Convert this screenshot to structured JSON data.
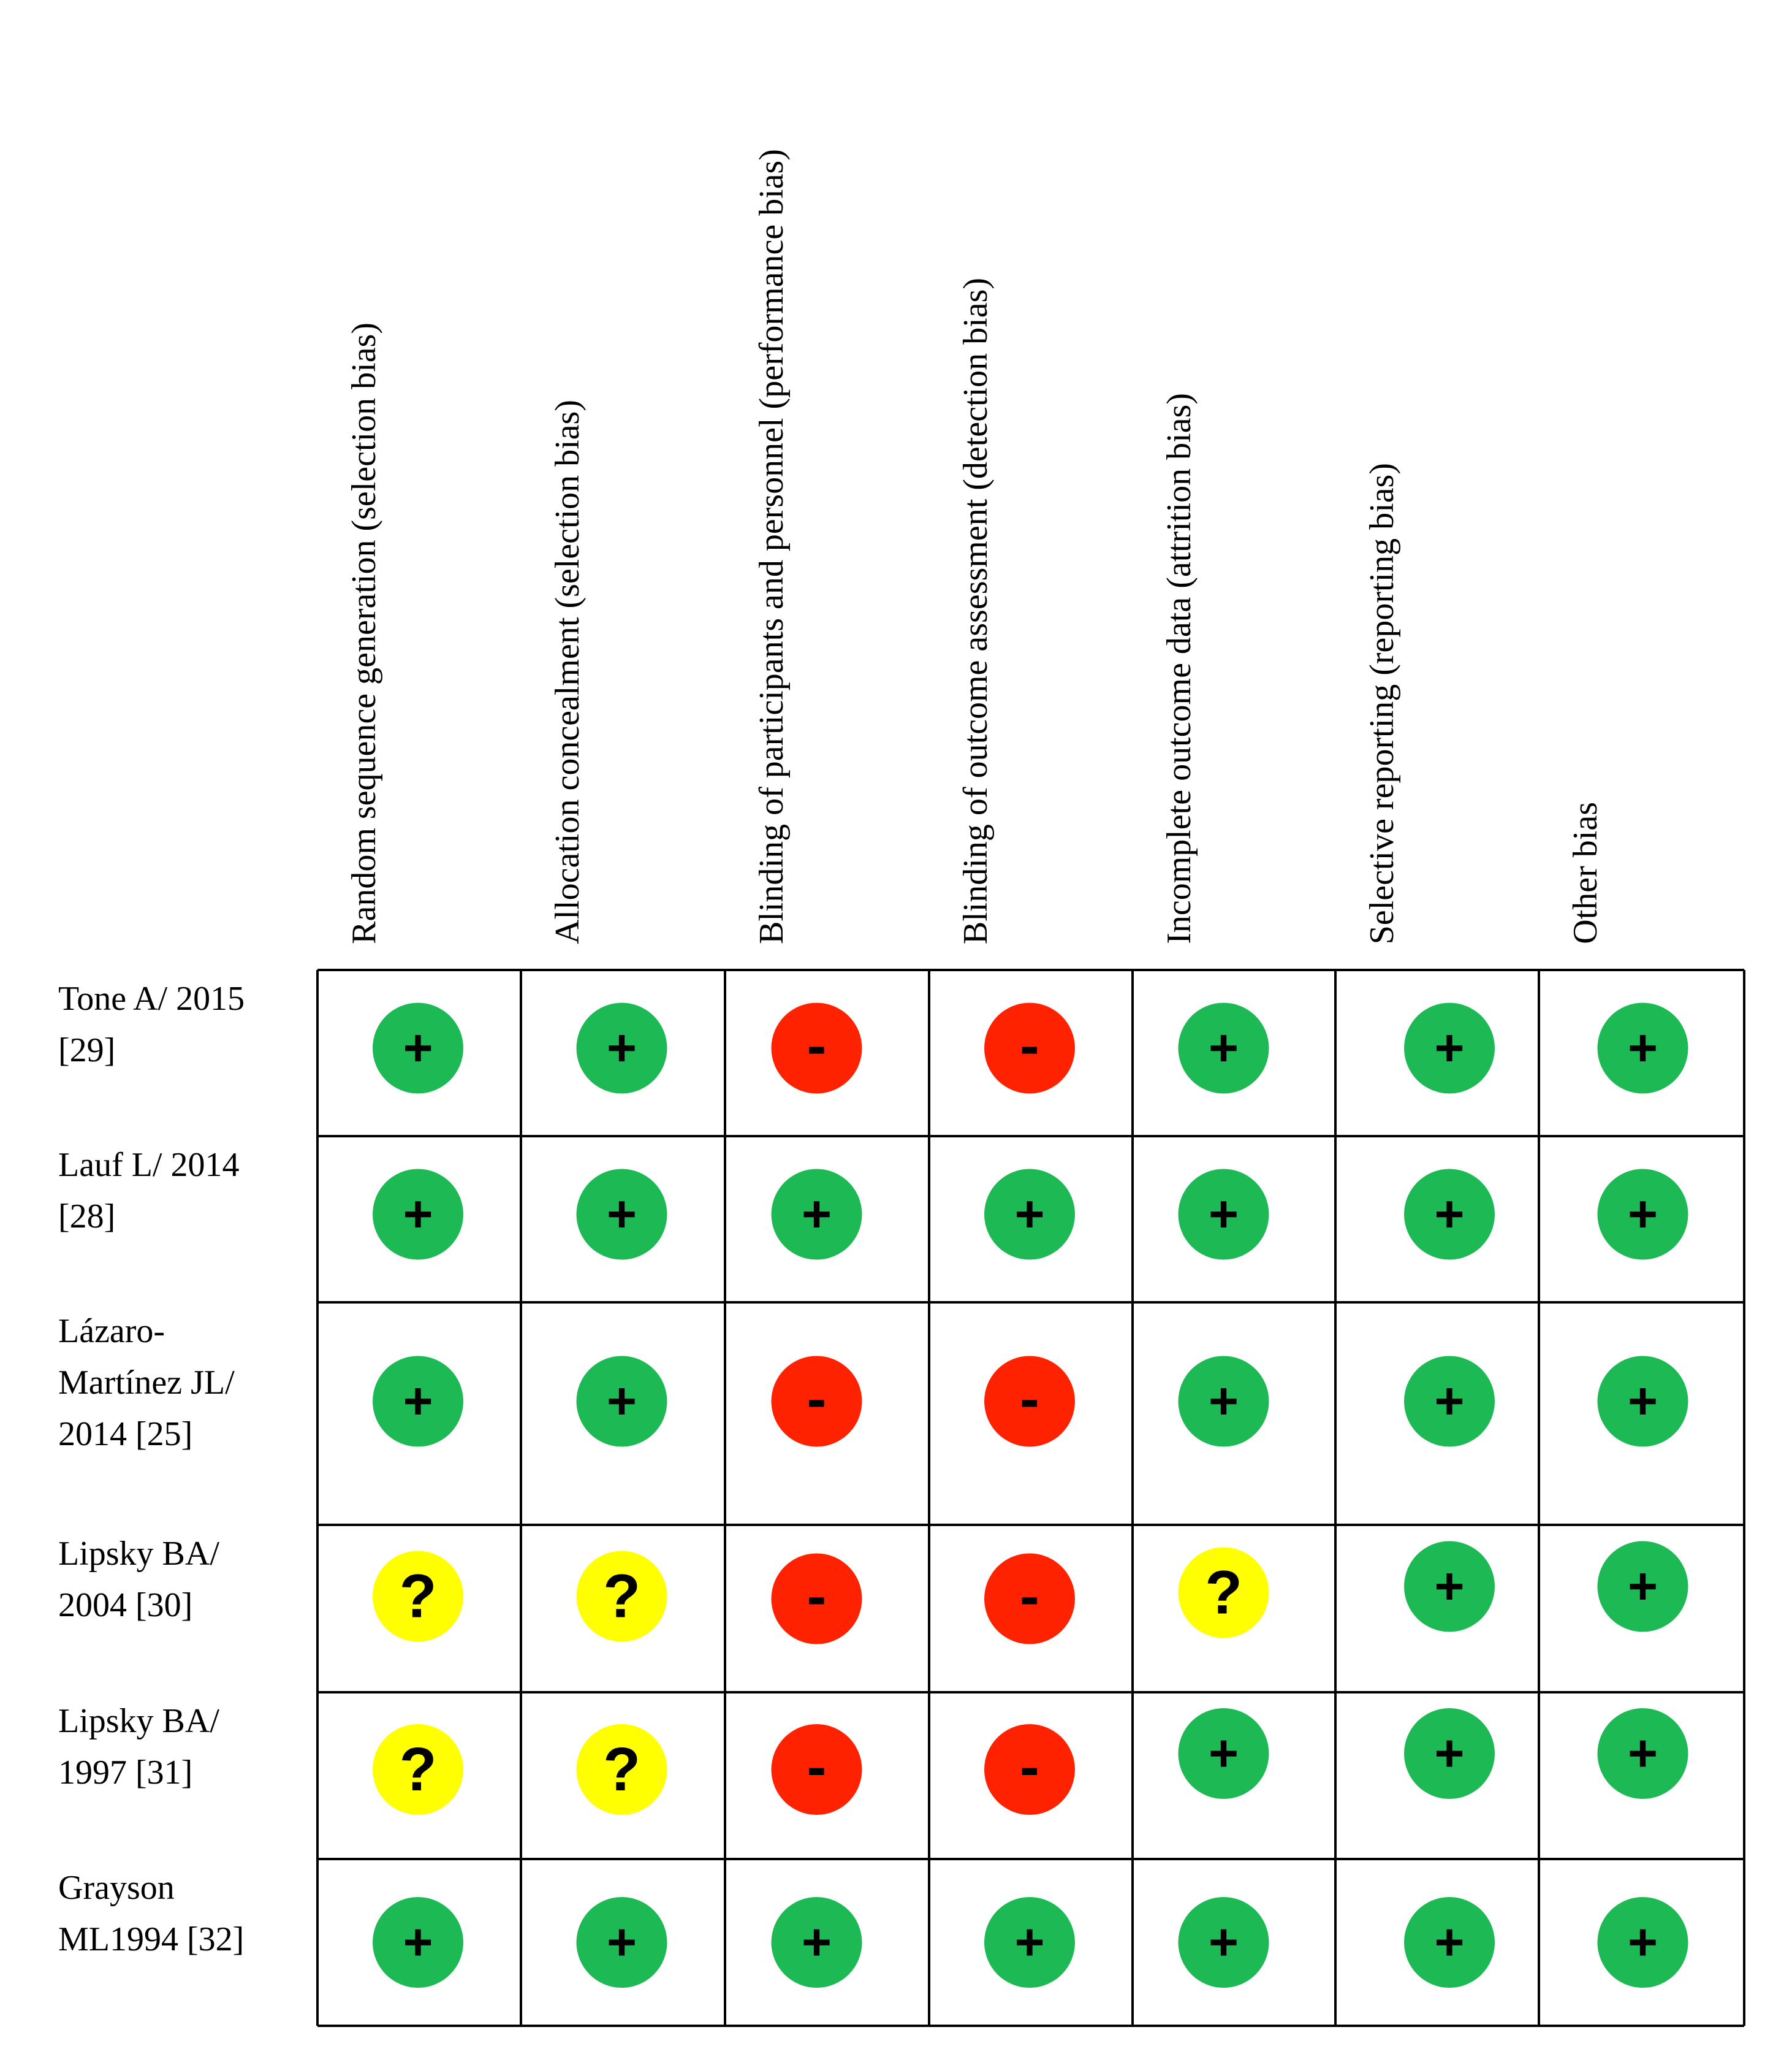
{
  "chart_data": {
    "type": "table",
    "legend_symbols": {
      "low": "+",
      "high": "-",
      "unclear": "?"
    },
    "colors": {
      "low": "#1db954",
      "high": "#ff2200",
      "unclear": "#ffff00",
      "grid": "#000000",
      "symbol": "#000000"
    },
    "domains": [
      "Random sequence generation (selection bias)",
      "Allocation concealment (selection bias)",
      "Blinding of participants and personnel (performance bias)",
      "Blinding of outcome assessment (detection bias)",
      "Incomplete outcome data (attrition bias)",
      "Selective reporting (reporting bias)",
      "Other bias"
    ],
    "studies": [
      {
        "lines": [
          "Tone A/ 2015",
          "[29]"
        ],
        "ratings": [
          "low",
          "low",
          "high",
          "high",
          "low",
          "low",
          "low"
        ]
      },
      {
        "lines": [
          "Lauf L/ 2014",
          "[28]"
        ],
        "ratings": [
          "low",
          "low",
          "low",
          "low",
          "low",
          "low",
          "low"
        ]
      },
      {
        "lines": [
          "Lázaro-",
          "Martínez JL/",
          "2014 [25]"
        ],
        "ratings": [
          "low",
          "low",
          "high",
          "high",
          "low",
          "low",
          "low"
        ]
      },
      {
        "lines": [
          "Lipsky BA/",
          "2004 [30]"
        ],
        "ratings": [
          "unclear",
          "unclear",
          "high",
          "high",
          "unclear",
          "low",
          "low"
        ]
      },
      {
        "lines": [
          "Lipsky BA/",
          "1997 [31]"
        ],
        "ratings": [
          "unclear",
          "unclear",
          "high",
          "high",
          "low",
          "low",
          "low"
        ]
      },
      {
        "lines": [
          "Grayson",
          "ML1994 [32]"
        ],
        "ratings": [
          "low",
          "low",
          "low",
          "low",
          "low",
          "low",
          "low"
        ]
      }
    ]
  }
}
